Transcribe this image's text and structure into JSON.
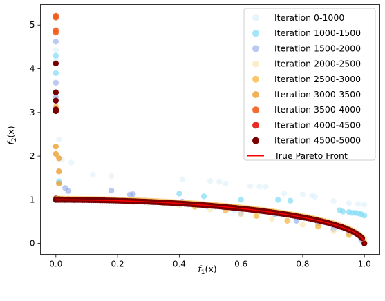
{
  "chart_data": {
    "type": "scatter",
    "title": "",
    "xlabel": "f",
    "xlabel_sub": "1",
    "xlabel_suffix": "(x)",
    "ylabel": "f",
    "ylabel_sub": "2",
    "ylabel_suffix": "(x)",
    "xlim": [
      -0.05,
      1.05
    ],
    "ylim": [
      -0.25,
      5.47
    ],
    "xticks": [
      0.0,
      0.2,
      0.4,
      0.6,
      0.8,
      1.0
    ],
    "xtick_labels": [
      "0.0",
      "0.2",
      "0.4",
      "0.6",
      "0.8",
      "1.0"
    ],
    "yticks": [
      0,
      1,
      2,
      3,
      4,
      5
    ],
    "ytick_labels": [
      "0",
      "1",
      "2",
      "3",
      "4",
      "5"
    ],
    "grid": false,
    "legend_position": "top-right",
    "series": [
      {
        "name": "Iteration 0-1000",
        "color": "#d6eef9",
        "points": [
          [
            0.0,
            4.43
          ],
          [
            0.0,
            4.22
          ],
          [
            0.01,
            2.38
          ],
          [
            0.02,
            1.92
          ],
          [
            0.05,
            1.85
          ],
          [
            0.12,
            1.57
          ],
          [
            0.18,
            1.54
          ],
          [
            0.41,
            1.47
          ],
          [
            0.5,
            1.43
          ],
          [
            0.53,
            1.41
          ],
          [
            0.55,
            1.37
          ],
          [
            0.63,
            1.31
          ],
          [
            0.66,
            1.3
          ],
          [
            0.68,
            1.3
          ],
          [
            0.74,
            1.14
          ],
          [
            0.8,
            1.12
          ],
          [
            0.83,
            1.1
          ],
          [
            0.84,
            1.07
          ],
          [
            0.9,
            0.97
          ],
          [
            0.95,
            0.92
          ],
          [
            0.98,
            0.9
          ],
          [
            1.0,
            0.89
          ],
          [
            0.01,
            1.43
          ],
          [
            0.29,
            0.99
          ],
          [
            0.58,
            0.74
          ]
        ]
      },
      {
        "name": "Iteration 1000-1500",
        "color": "#80dcf5",
        "points": [
          [
            0.0,
            4.3
          ],
          [
            0.0,
            3.9
          ],
          [
            0.01,
            1.41
          ],
          [
            0.4,
            1.14
          ],
          [
            0.48,
            1.08
          ],
          [
            0.6,
            1.0
          ],
          [
            0.72,
            1.0
          ],
          [
            0.76,
            0.98
          ],
          [
            0.92,
            0.76
          ],
          [
            0.93,
            0.73
          ],
          [
            0.95,
            0.72
          ],
          [
            0.96,
            0.7
          ],
          [
            0.98,
            0.69
          ],
          [
            0.99,
            0.67
          ],
          [
            1.0,
            0.64
          ],
          [
            0.97,
            0.7
          ]
        ]
      },
      {
        "name": "Iteration 1500-2000",
        "color": "#8da4e8",
        "points": [
          [
            0.0,
            4.62
          ],
          [
            0.0,
            3.68
          ],
          [
            0.0,
            3.35
          ],
          [
            0.03,
            1.27
          ],
          [
            0.04,
            1.2
          ],
          [
            0.18,
            1.21
          ],
          [
            0.24,
            1.12
          ],
          [
            0.25,
            1.13
          ],
          [
            0.41,
            0.96
          ],
          [
            0.49,
            0.85
          ],
          [
            0.6,
            0.68
          ],
          [
            0.71,
            0.67
          ],
          [
            0.78,
            0.52
          ],
          [
            0.85,
            0.46
          ],
          [
            0.9,
            0.33
          ],
          [
            0.95,
            0.23
          ],
          [
            0.99,
            0.08
          ]
        ]
      },
      {
        "name": "Iteration 2000-2500",
        "color": "#f5e6a8",
        "points": [
          [
            0.02,
            1.02
          ],
          [
            0.1,
            1.01
          ],
          [
            0.2,
            0.97
          ],
          [
            0.3,
            0.93
          ],
          [
            0.4,
            0.86
          ],
          [
            0.5,
            0.78
          ],
          [
            0.6,
            0.67
          ],
          [
            0.7,
            0.56
          ],
          [
            0.8,
            0.43
          ],
          [
            0.9,
            0.28
          ],
          [
            1.0,
            0.1
          ]
        ]
      },
      {
        "name": "Iteration 2500-3000",
        "color": "#f7b94a",
        "points": [
          [
            0.0,
            3.13
          ],
          [
            0.15,
            1.0
          ],
          [
            0.25,
            0.95
          ],
          [
            0.35,
            0.91
          ],
          [
            0.45,
            0.84
          ],
          [
            0.55,
            0.75
          ],
          [
            0.65,
            0.63
          ],
          [
            0.75,
            0.52
          ],
          [
            0.85,
            0.39
          ],
          [
            0.95,
            0.19
          ]
        ]
      },
      {
        "name": "Iteration 3000-3500",
        "color": "#eb9f2e",
        "points": [
          [
            0.0,
            2.22
          ],
          [
            0.0,
            2.05
          ],
          [
            0.01,
            1.95
          ],
          [
            0.01,
            1.65
          ],
          [
            0.01,
            1.37
          ],
          [
            0.0,
            1.0
          ]
        ]
      },
      {
        "name": "Iteration 3500-4000",
        "color": "#f25c1c",
        "points": [
          [
            0.0,
            5.21
          ],
          [
            0.0,
            5.17
          ],
          [
            0.0,
            4.88
          ],
          [
            0.0,
            4.83
          ]
        ]
      },
      {
        "name": "Iteration 4000-4500",
        "color": "#e8201c",
        "points": [
          [
            0.04,
            1.01
          ],
          [
            0.05,
            1.0
          ],
          [
            0.06,
            1.0
          ]
        ]
      },
      {
        "name": "Iteration 4500-5000",
        "color": "#780000",
        "points": [
          [
            0.0,
            4.12
          ],
          [
            0.0,
            3.46
          ],
          [
            0.0,
            3.27
          ],
          [
            0.0,
            3.07
          ],
          [
            0.0,
            3.03
          ],
          [
            0.0,
            1.03
          ],
          [
            0.01,
            1.02
          ],
          [
            0.02,
            1.01
          ]
        ]
      }
    ],
    "front": {
      "dense_series_index": 8,
      "light_series_index": 2,
      "orange_series_index": 4,
      "x_start": 0.0,
      "x_end": 1.0,
      "count": 140
    },
    "line": {
      "name": "True Pareto Front",
      "color": "#ff0000"
    }
  }
}
